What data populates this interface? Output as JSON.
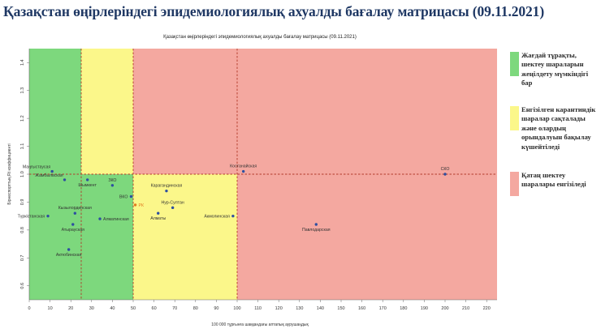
{
  "page": {
    "title": "Қазақстан өңірлеріндегі эпидемиологиялық ахуалды бағалау матрицасы  (09.11.2021)"
  },
  "legend": [
    {
      "text": "Жағдай тұрақты, шектеу шараларын жеңілдету мүмкіндігі бар",
      "color": "#7dd87d"
    },
    {
      "text": "Енгізілген карантиндік шаралар сақталады және олардың орындалуын бақылау күшейтіледі",
      "color": "#fbf78a"
    },
    {
      "text": "Қатаң шектеу шаралары енгізіледі",
      "color": "#f4a8a0"
    }
  ],
  "chart_data": {
    "type": "scatter",
    "title": "Қазақстан өңірлеріндегі эпидемиологиялық ахуалды бағалау матрицасы (09.11.2021)",
    "xlabel": "100 000 тұрғынға шаққандағы аптапық аурушаңдық",
    "ylabel": "Бірнеспорттың Rt коэффициенті",
    "xlim": [
      0,
      225
    ],
    "ylim": [
      0.55,
      1.45
    ],
    "x_ticks": [
      0,
      10,
      20,
      30,
      40,
      50,
      60,
      70,
      80,
      90,
      100,
      110,
      120,
      130,
      140,
      150,
      160,
      170,
      180,
      190,
      200,
      210,
      220
    ],
    "y_ticks": [
      "0.6",
      "0.7",
      "0.8",
      "0.9",
      "1.0",
      "1.1",
      "1.2",
      "1.3",
      "1.4"
    ],
    "y_tick_values": [
      0.6,
      0.7,
      0.8,
      0.9,
      1.0,
      1.1,
      1.2,
      1.3,
      1.4
    ],
    "zones": [
      {
        "name": "green",
        "x_from": 0,
        "x_to": 50,
        "y_from": 0.55,
        "y_to": 1.0,
        "color": "#7dd87d"
      },
      {
        "name": "green-upper",
        "x_from": 0,
        "x_to": 25,
        "y_from": 1.0,
        "y_to": 1.45,
        "color": "#7dd87d"
      },
      {
        "name": "yellow-upper",
        "x_from": 25,
        "x_to": 50,
        "y_from": 1.0,
        "y_to": 1.45,
        "color": "#fbf78a"
      },
      {
        "name": "yellow",
        "x_from": 50,
        "x_to": 100,
        "y_from": 0.55,
        "y_to": 1.0,
        "color": "#fbf78a"
      },
      {
        "name": "red-upper",
        "x_from": 50,
        "x_to": 225,
        "y_from": 1.0,
        "y_to": 1.45,
        "color": "#f4a8a0"
      },
      {
        "name": "red",
        "x_from": 100,
        "x_to": 225,
        "y_from": 0.55,
        "y_to": 1.0,
        "color": "#f4a8a0"
      }
    ],
    "reference_lines": {
      "x": [
        25,
        50,
        100
      ],
      "y": [
        1.0
      ]
    },
    "points": [
      {
        "label": "Маңғыстаусая",
        "x": 11,
        "y": 1.01,
        "color": "#2e4fa0",
        "label_pos": "above-left"
      },
      {
        "label": "Жамбылвская",
        "x": 17,
        "y": 0.98,
        "color": "#2e4fa0",
        "label_pos": "above-left"
      },
      {
        "label": "Шымкент",
        "x": 28,
        "y": 0.98,
        "color": "#2e4fa0",
        "label_pos": "below"
      },
      {
        "label": "ЗКО",
        "x": 40,
        "y": 0.96,
        "color": "#2e4fa0",
        "label_pos": "above"
      },
      {
        "label": "ВКО",
        "x": 49,
        "y": 0.92,
        "color": "#2e4fa0",
        "label_pos": "left"
      },
      {
        "label": "РК",
        "x": 51,
        "y": 0.89,
        "color": "#e07b20",
        "label_pos": "right"
      },
      {
        "label": "Түркістанская",
        "x": 9,
        "y": 0.85,
        "color": "#2e4fa0",
        "label_pos": "left"
      },
      {
        "label": "Кызылординская",
        "x": 22,
        "y": 0.86,
        "color": "#2e4fa0",
        "label_pos": "above"
      },
      {
        "label": "Алматинская",
        "x": 34,
        "y": 0.84,
        "color": "#2e4fa0",
        "label_pos": "right"
      },
      {
        "label": "Атырауская",
        "x": 21,
        "y": 0.82,
        "color": "#2e4fa0",
        "label_pos": "below"
      },
      {
        "label": "Актюбинская",
        "x": 19,
        "y": 0.73,
        "color": "#2e4fa0",
        "label_pos": "below"
      },
      {
        "label": "Карагандинская",
        "x": 66,
        "y": 0.94,
        "color": "#2e4fa0",
        "label_pos": "above"
      },
      {
        "label": "Нур-Султан",
        "x": 69,
        "y": 0.88,
        "color": "#2e4fa0",
        "label_pos": "above"
      },
      {
        "label": "Алматы",
        "x": 62,
        "y": 0.86,
        "color": "#2e4fa0",
        "label_pos": "below"
      },
      {
        "label": "Акмолинская",
        "x": 98,
        "y": 0.85,
        "color": "#2e4fa0",
        "label_pos": "left"
      },
      {
        "label": "Костанайская",
        "x": 103,
        "y": 1.01,
        "color": "#2e4fa0",
        "label_pos": "above"
      },
      {
        "label": "Павлодарская",
        "x": 138,
        "y": 0.82,
        "color": "#2e4fa0",
        "label_pos": "below"
      },
      {
        "label": "СКО",
        "x": 200,
        "y": 1.0,
        "color": "#2e4fa0",
        "label_pos": "above"
      }
    ]
  }
}
